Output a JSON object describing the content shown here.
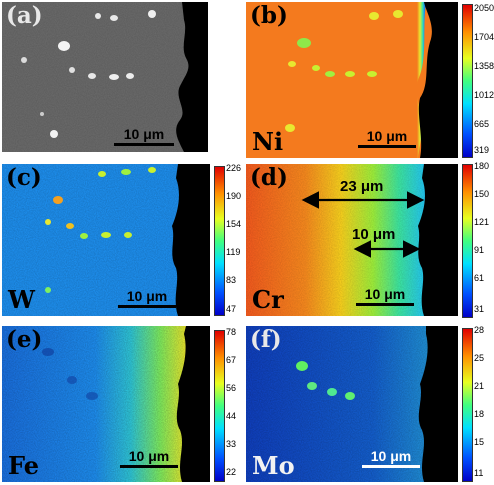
{
  "panels": {
    "a": {
      "letter": "(a)",
      "scale": "10 μm"
    },
    "b": {
      "letter": "(b)",
      "element": "Ni",
      "scale": "10 μm",
      "colorbar": [
        "2050",
        "1704",
        "1358",
        "1012",
        "665",
        "319"
      ]
    },
    "c": {
      "letter": "(c)",
      "element": "W",
      "scale": "10 μm",
      "colorbar": [
        "226",
        "190",
        "154",
        "119",
        "83",
        "47"
      ]
    },
    "d": {
      "letter": "(d)",
      "element": "Cr",
      "scale": "10 μm",
      "colorbar": [
        "180",
        "150",
        "121",
        "91",
        "61",
        "31"
      ],
      "annotations": {
        "width_1": "23 μm",
        "width_2": "10 μm"
      }
    },
    "e": {
      "letter": "(e)",
      "element": "Fe",
      "scale": "10 μm",
      "colorbar": [
        "78",
        "67",
        "56",
        "44",
        "33",
        "22"
      ]
    },
    "f": {
      "letter": "(f)",
      "element": "Mo",
      "scale": "10 μm",
      "colorbar": [
        "28",
        "25",
        "21",
        "18",
        "15",
        "11"
      ]
    }
  },
  "colors": {
    "jet_low": "#0000ff",
    "jet_high": "#ff0000",
    "background": "#000000"
  },
  "icons": {
    "arrow": "double-headed-arrow"
  }
}
